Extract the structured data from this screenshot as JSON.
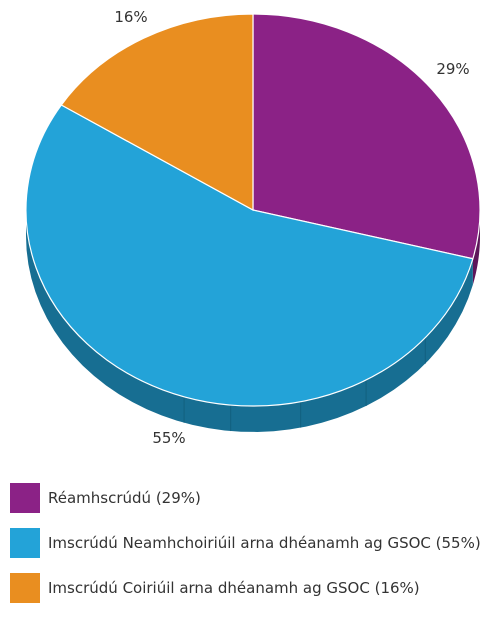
{
  "chart_data": {
    "type": "pie",
    "style": "3d",
    "title": "",
    "legend_position": "bottom",
    "slices": [
      {
        "label": "Réamhscrúdú (29%)",
        "value": 29,
        "display": "29%",
        "color": "#8b2286",
        "side_color": "#5e165a"
      },
      {
        "label": "Imscrúdú Neamhchoiriúil arna dhéanamh ag GSOC (55%)",
        "value": 55,
        "display": "55%",
        "color": "#23a3d8",
        "side_color": "#176e92"
      },
      {
        "label": "Imscrúdú Coiriúil arna dhéanamh ag GSOC (16%)",
        "value": 16,
        "display": "16%",
        "color": "#e98e20",
        "side_color": "#a86515"
      }
    ]
  }
}
